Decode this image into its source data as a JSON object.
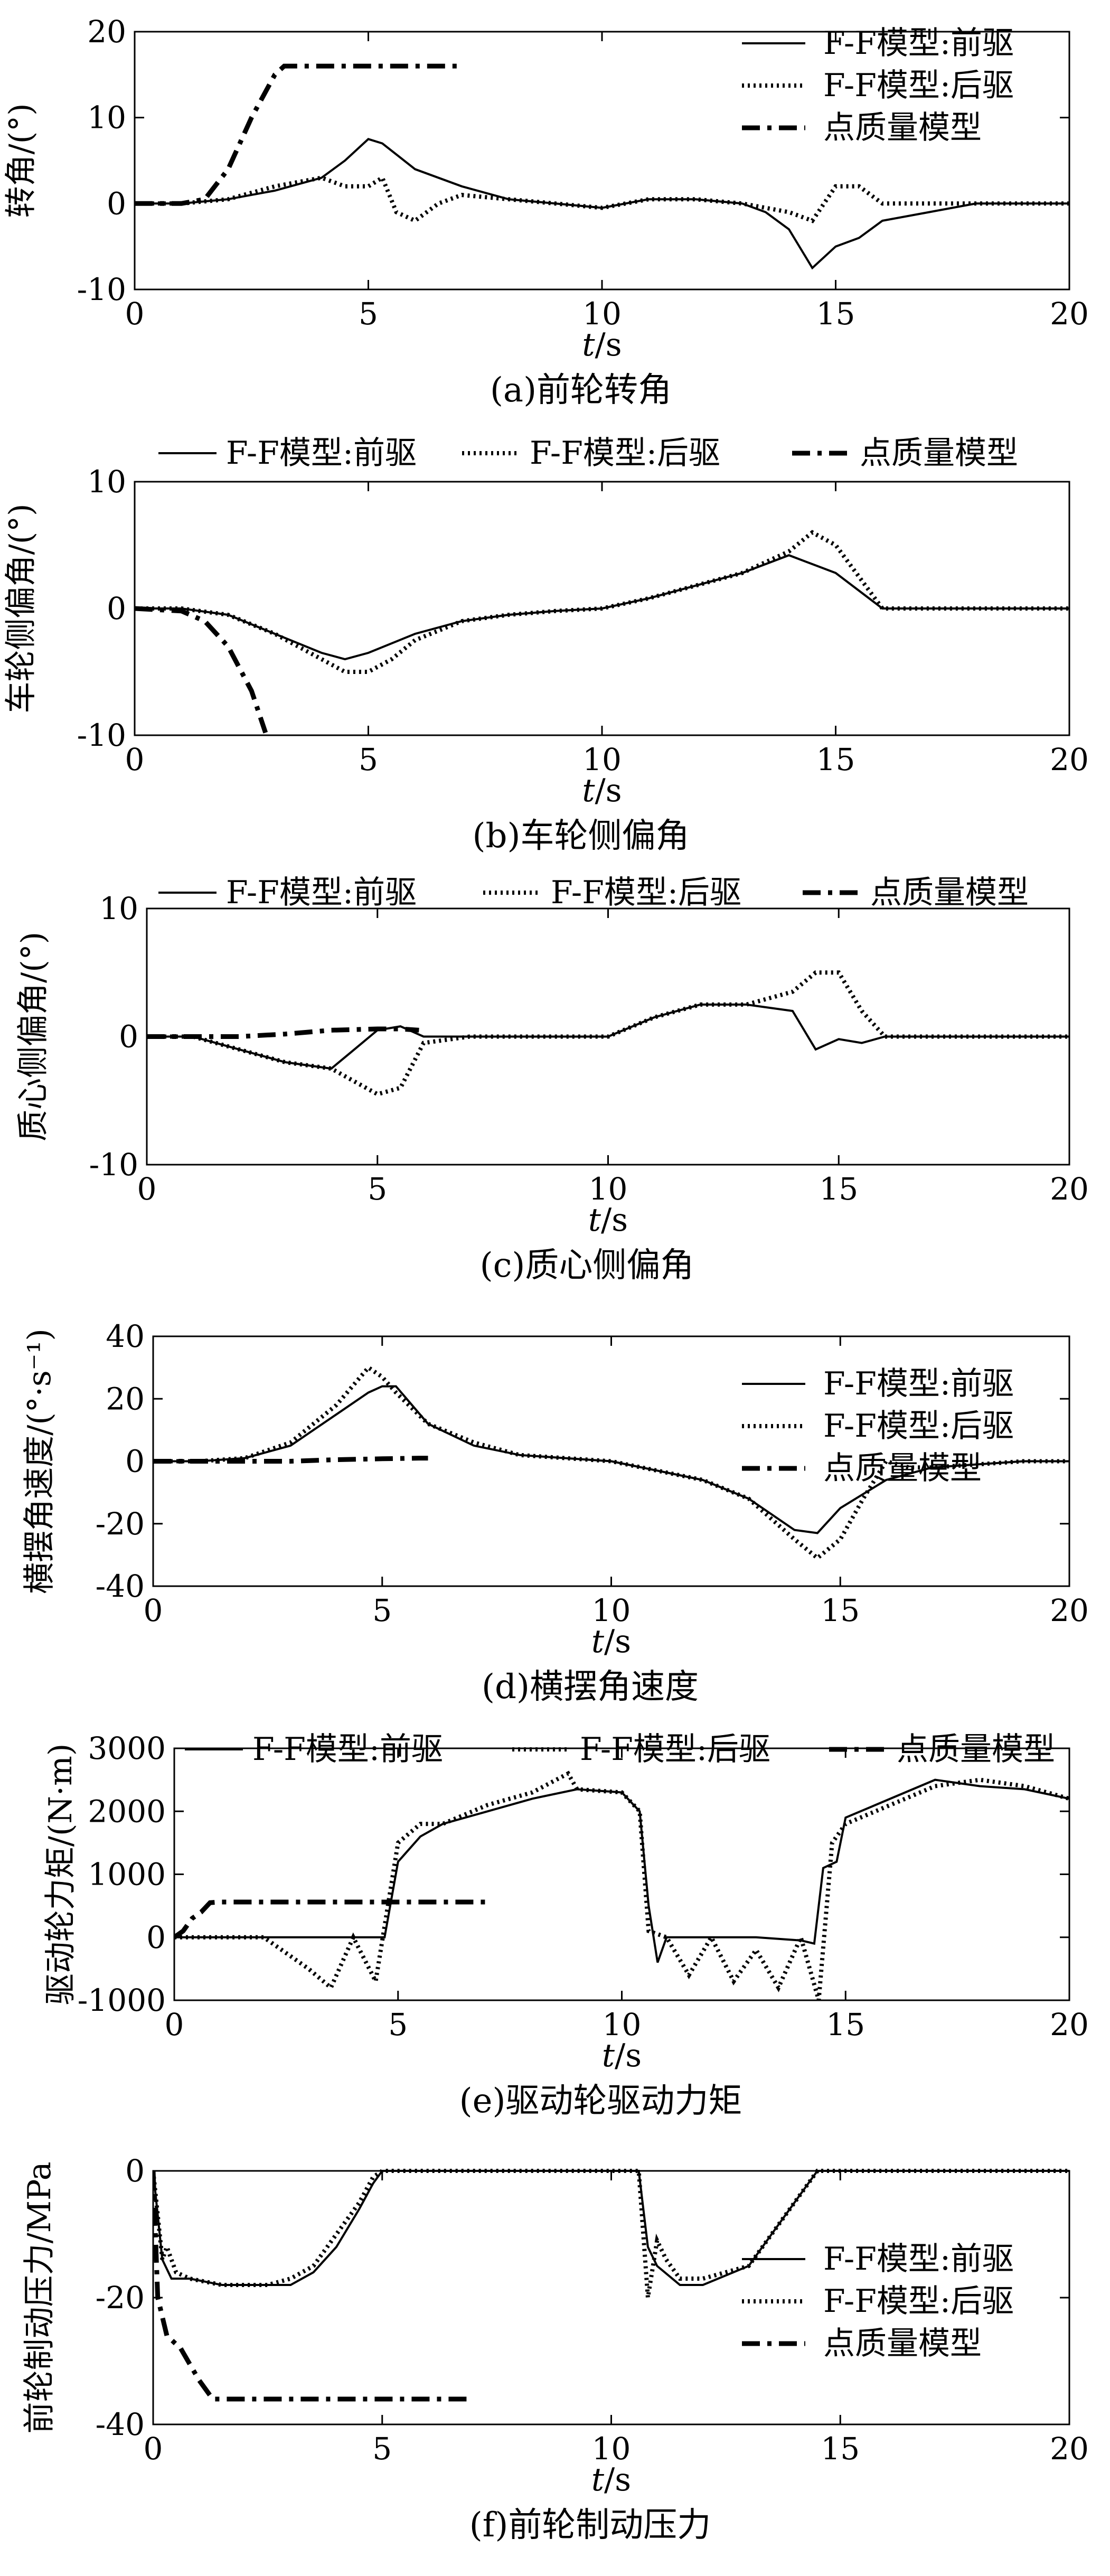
{
  "chart_data": [
    {
      "type": "line",
      "caption": "(a)前轮转角",
      "xlabel_var": "t",
      "xlabel_unit": "/s",
      "ylabel": "转角/(°)",
      "xlim": [
        0,
        20
      ],
      "ylim": [
        -10,
        20
      ],
      "xticks": [
        0,
        5,
        10,
        15,
        20
      ],
      "yticks": [
        -10,
        0,
        10,
        20
      ],
      "legend_position": "top-right",
      "series": [
        {
          "name": "F-F模型:前驱",
          "style": "solid",
          "x": [
            0,
            1,
            2,
            3,
            4,
            4.5,
            5,
            5.3,
            6,
            7,
            8,
            9,
            10,
            11,
            12,
            13,
            13.5,
            14,
            14.5,
            15,
            15.5,
            16,
            17,
            18,
            19,
            20
          ],
          "y": [
            0,
            0,
            0.5,
            1.5,
            3,
            5,
            7.5,
            7,
            4,
            2,
            0.5,
            0,
            -0.5,
            0.5,
            0.5,
            0,
            -1,
            -3,
            -7.5,
            -5,
            -4,
            -2,
            -1,
            0,
            0,
            0
          ]
        },
        {
          "name": "F-F模型:后驱",
          "style": "dotted",
          "x": [
            0,
            1,
            2,
            3,
            4,
            4.5,
            5,
            5.3,
            5.6,
            6,
            6.5,
            7,
            8,
            9,
            10,
            11,
            12,
            13,
            13.5,
            14,
            14.5,
            15,
            15.5,
            16,
            17,
            18,
            19,
            20
          ],
          "y": [
            0,
            0,
            0.5,
            2,
            3,
            2,
            2,
            3,
            -1,
            -2,
            0,
            1,
            0.5,
            0,
            -0.5,
            0.5,
            0.5,
            0,
            -0.5,
            -1,
            -2,
            2,
            2,
            0,
            0,
            0,
            0,
            0
          ]
        },
        {
          "name": "点质量模型",
          "style": "dashdot",
          "x": [
            0,
            1,
            1.5,
            2,
            2.5,
            3,
            3.2,
            4,
            5,
            6,
            7
          ],
          "y": [
            0,
            0,
            0.5,
            4,
            10,
            15,
            16,
            16,
            16,
            16,
            16
          ]
        }
      ]
    },
    {
      "type": "line",
      "caption": "(b)车轮侧偏角",
      "xlabel_var": "t",
      "xlabel_unit": "/s",
      "ylabel": "车轮侧偏角/(°)",
      "xlim": [
        0,
        20
      ],
      "ylim": [
        -10,
        10
      ],
      "xticks": [
        0,
        5,
        10,
        15,
        20
      ],
      "yticks": [
        -10,
        0,
        10
      ],
      "legend_position": "top",
      "series": [
        {
          "name": "F-F模型:前驱",
          "style": "solid",
          "x": [
            0,
            1,
            2,
            3,
            4,
            4.5,
            5,
            6,
            7,
            8,
            9,
            10,
            11,
            12,
            13,
            14,
            14.5,
            15,
            16,
            17,
            18,
            19,
            20
          ],
          "y": [
            0,
            0,
            -0.5,
            -2,
            -3.5,
            -4,
            -3.5,
            -2,
            -1,
            -0.5,
            -0.2,
            0,
            0.8,
            1.8,
            2.8,
            4.2,
            3.5,
            2.8,
            0,
            0,
            0,
            0,
            0
          ]
        },
        {
          "name": "F-F模型:后驱",
          "style": "dotted",
          "x": [
            0,
            1,
            2,
            3,
            4,
            4.5,
            5,
            5.5,
            6,
            7,
            8,
            9,
            10,
            11,
            12,
            13,
            14,
            14.5,
            15,
            16,
            17,
            18,
            19,
            20
          ],
          "y": [
            0,
            0,
            -0.5,
            -2,
            -4,
            -5,
            -5,
            -4,
            -2.5,
            -1,
            -0.5,
            -0.2,
            0,
            0.8,
            1.8,
            2.8,
            4.5,
            6,
            5,
            0,
            0,
            0,
            0,
            0
          ]
        },
        {
          "name": "点质量模型",
          "style": "dashdot",
          "x": [
            0,
            1,
            1.5,
            2,
            2.5,
            2.8
          ],
          "y": [
            0,
            -0.2,
            -1,
            -3,
            -6.5,
            -9.8
          ]
        }
      ]
    },
    {
      "type": "line",
      "caption": "(c)质心侧偏角",
      "xlabel_var": "t",
      "xlabel_unit": "/s",
      "ylabel": "质心侧偏角/(°)",
      "xlim": [
        0,
        20
      ],
      "ylim": [
        -10,
        10
      ],
      "xticks": [
        0,
        5,
        10,
        15,
        20
      ],
      "yticks": [
        -10,
        0,
        10
      ],
      "legend_position": "top",
      "series": [
        {
          "name": "F-F模型:前驱",
          "style": "solid",
          "x": [
            0,
            1,
            2,
            3,
            4,
            4.5,
            5,
            5.5,
            6,
            7,
            8,
            9,
            10,
            11,
            12,
            13,
            14,
            14.5,
            15,
            15.5,
            16,
            17,
            18,
            19,
            20
          ],
          "y": [
            0,
            0,
            -1,
            -2,
            -2.5,
            -1,
            0.5,
            0.8,
            0,
            0,
            0,
            0,
            0,
            1.5,
            2.5,
            2.5,
            2,
            -1,
            -0.2,
            -0.5,
            0,
            0,
            0,
            0,
            0
          ]
        },
        {
          "name": "F-F模型:后驱",
          "style": "dotted",
          "x": [
            0,
            1,
            2,
            3,
            4,
            4.5,
            5,
            5.5,
            6,
            7,
            8,
            9,
            10,
            11,
            12,
            13,
            14,
            14.5,
            15,
            15.5,
            16,
            17,
            18,
            19,
            20
          ],
          "y": [
            0,
            0,
            -1,
            -2,
            -2.5,
            -3.5,
            -4.5,
            -4,
            -0.5,
            0,
            0,
            0,
            0,
            1.5,
            2.5,
            2.5,
            3.5,
            5,
            5,
            2,
            0,
            0,
            0,
            0,
            0
          ]
        },
        {
          "name": "点质量模型",
          "style": "dashdot",
          "x": [
            0,
            1,
            2,
            3,
            4,
            5,
            5.5,
            5.9
          ],
          "y": [
            0,
            0,
            0,
            0.2,
            0.5,
            0.6,
            0.6,
            0.5
          ]
        }
      ]
    },
    {
      "type": "line",
      "caption": "(d)横摆角速度",
      "xlabel_var": "t",
      "xlabel_unit": "/s",
      "ylabel": "横摆角速度/(°·s⁻¹)",
      "xlim": [
        0,
        20
      ],
      "ylim": [
        -40,
        40
      ],
      "xticks": [
        0,
        5,
        10,
        15,
        20
      ],
      "yticks": [
        -40,
        -20,
        0,
        20,
        40
      ],
      "legend_position": "top-right",
      "series": [
        {
          "name": "F-F模型:前驱",
          "style": "solid",
          "x": [
            0,
            1,
            2,
            3,
            4,
            4.7,
            5,
            5.3,
            6,
            7,
            8,
            9,
            10,
            11,
            12,
            13,
            14,
            14.5,
            15,
            16,
            17,
            18,
            19,
            20
          ],
          "y": [
            0,
            0,
            1,
            5,
            15,
            22,
            24,
            24,
            12,
            5,
            2,
            1,
            0,
            -3,
            -6,
            -12,
            -22,
            -23,
            -15,
            -6,
            -2,
            -1,
            0,
            0
          ]
        },
        {
          "name": "F-F模型:后驱",
          "style": "dotted",
          "x": [
            0,
            1,
            2,
            3,
            4,
            4.7,
            5,
            5.3,
            6,
            7,
            8,
            9,
            10,
            11,
            12,
            13,
            14,
            14.5,
            15,
            15.5,
            16,
            16.5,
            17,
            18,
            19,
            20
          ],
          "y": [
            0,
            0,
            1,
            6,
            18,
            30,
            27,
            22,
            12,
            6,
            2,
            1,
            0,
            -3,
            -6,
            -12,
            -25,
            -31,
            -25,
            -12,
            0,
            -2,
            -2,
            -1,
            0,
            0
          ]
        },
        {
          "name": "点质量模型",
          "style": "dashdot",
          "x": [
            0,
            1,
            2,
            3,
            4,
            5,
            5.8,
            6
          ],
          "y": [
            0,
            0,
            0,
            0,
            0.5,
            0.8,
            1,
            1
          ]
        }
      ]
    },
    {
      "type": "line",
      "caption": "(e)驱动轮驱动力矩",
      "xlabel_var": "t",
      "xlabel_unit": "/s",
      "ylabel": "驱动轮力矩/(N·m)",
      "xlim": [
        0,
        20
      ],
      "ylim": [
        -1000,
        3000
      ],
      "xticks": [
        0,
        5,
        10,
        15,
        20
      ],
      "yticks": [
        -1000,
        0,
        1000,
        2000,
        3000
      ],
      "legend_position": "top",
      "series": [
        {
          "name": "F-F模型:前驱",
          "style": "solid",
          "x": [
            0,
            1,
            2,
            3,
            4,
            4.7,
            5,
            5.5,
            6,
            7,
            8,
            9,
            10,
            10.4,
            10.6,
            10.8,
            11,
            12,
            13,
            14,
            14.3,
            14.5,
            14.8,
            15,
            16,
            17,
            18,
            19,
            20
          ],
          "y": [
            0,
            0,
            0,
            0,
            0,
            0,
            1200,
            1600,
            1800,
            2000,
            2200,
            2350,
            2300,
            2000,
            500,
            -400,
            0,
            0,
            0,
            -50,
            -100,
            1100,
            1200,
            1900,
            2200,
            2500,
            2400,
            2350,
            2200
          ]
        },
        {
          "name": "F-F模型:后驱",
          "style": "dotted",
          "x": [
            0,
            1,
            2,
            3,
            3.5,
            4,
            4.5,
            5,
            5.5,
            6,
            7,
            8,
            8.8,
            9,
            10,
            10.4,
            10.6,
            11,
            11.5,
            12,
            12.5,
            13,
            13.5,
            14,
            14.4,
            14.7,
            15,
            16,
            17,
            18,
            19,
            20
          ],
          "y": [
            0,
            0,
            0,
            -500,
            -800,
            0,
            -700,
            1500,
            1800,
            1800,
            2100,
            2300,
            2600,
            2350,
            2300,
            2000,
            100,
            0,
            -600,
            0,
            -700,
            -200,
            -800,
            0,
            -1000,
            1500,
            1800,
            2100,
            2400,
            2500,
            2400,
            2200
          ]
        },
        {
          "name": "点质量模型",
          "style": "dashdot",
          "x": [
            0,
            0.2,
            0.4,
            0.6,
            0.8,
            1,
            2,
            3,
            4,
            5,
            6,
            7
          ],
          "y": [
            0,
            100,
            300,
            400,
            550,
            560,
            560,
            560,
            560,
            560,
            560,
            560
          ]
        }
      ]
    },
    {
      "type": "line",
      "caption": "(f)前轮制动压力",
      "xlabel_var": "t",
      "xlabel_unit": "/s",
      "ylabel": "前轮制动压力/MPa",
      "xlim": [
        0,
        20
      ],
      "ylim": [
        -40,
        0
      ],
      "xticks": [
        0,
        5,
        10,
        15,
        20
      ],
      "yticks": [
        -40,
        -20,
        0
      ],
      "legend_position": "right",
      "series": [
        {
          "name": "F-F模型:前驱",
          "style": "solid",
          "x": [
            0,
            0.2,
            0.4,
            0.8,
            1.5,
            2,
            2.5,
            3,
            3.5,
            4,
            4.5,
            4.8,
            5,
            6,
            7,
            8,
            9,
            10,
            10.6,
            10.8,
            11,
            11.5,
            12,
            13,
            13.5,
            14,
            14.3,
            14.5,
            15,
            16,
            17,
            18,
            19,
            20
          ],
          "y": [
            0,
            -14,
            -17,
            -17,
            -18,
            -18,
            -18,
            -18,
            -16,
            -12,
            -6,
            -2,
            0,
            0,
            0,
            0,
            0,
            0,
            0,
            -12,
            -15,
            -18,
            -18,
            -15,
            -10,
            -5,
            -2,
            0,
            0,
            0,
            0,
            0,
            0,
            0
          ]
        },
        {
          "name": "F-F模型:后驱",
          "style": "dotted",
          "x": [
            0,
            0.2,
            0.3,
            0.5,
            0.8,
            1.5,
            2,
            2.5,
            3,
            3.5,
            4,
            4.5,
            4.8,
            5,
            6,
            7,
            8,
            9,
            10,
            10.6,
            10.8,
            11,
            11.2,
            11.5,
            12,
            13,
            13.5,
            14,
            14.3,
            14.5,
            15,
            16,
            17,
            18,
            19,
            20
          ],
          "y": [
            0,
            -14,
            -12,
            -16,
            -17,
            -18,
            -18,
            -18,
            -17,
            -15,
            -10,
            -5,
            -1,
            0,
            0,
            0,
            0,
            0,
            0,
            0,
            -20,
            -11,
            -14,
            -17,
            -17,
            -15,
            -10,
            -5,
            -2,
            0,
            0,
            0,
            0,
            0,
            0,
            0
          ]
        },
        {
          "name": "点质量模型",
          "style": "dashdot",
          "x": [
            0,
            0.1,
            0.3,
            0.6,
            1,
            1.3,
            2,
            3,
            4,
            5,
            6,
            7
          ],
          "y": [
            0,
            -20,
            -26,
            -28,
            -33,
            -36,
            -36,
            -36,
            -36,
            -36,
            -36,
            -36
          ]
        }
      ]
    }
  ]
}
